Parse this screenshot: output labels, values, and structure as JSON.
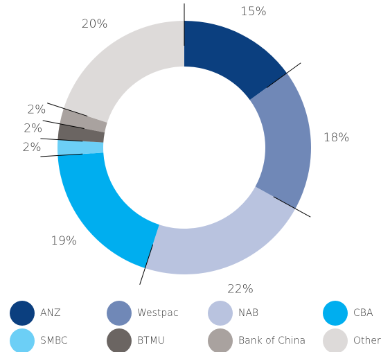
{
  "chart_data": {
    "type": "donut",
    "categories": [
      "ANZ",
      "Westpac",
      "NAB",
      "CBA",
      "SMBC",
      "BTMU",
      "Bank of China",
      "Other"
    ],
    "values": [
      15,
      18,
      22,
      19,
      2,
      2,
      2,
      20
    ],
    "value_labels": [
      "15%",
      "18%",
      "22%",
      "19%",
      "2%",
      "2%",
      "2%",
      "20%"
    ],
    "colors": [
      "#0b3f7f",
      "#7088b7",
      "#b9c3df",
      "#00aeef",
      "#6ccff6",
      "#6b6562",
      "#a9a29f",
      "#dddad9"
    ],
    "legend": "bottom"
  }
}
